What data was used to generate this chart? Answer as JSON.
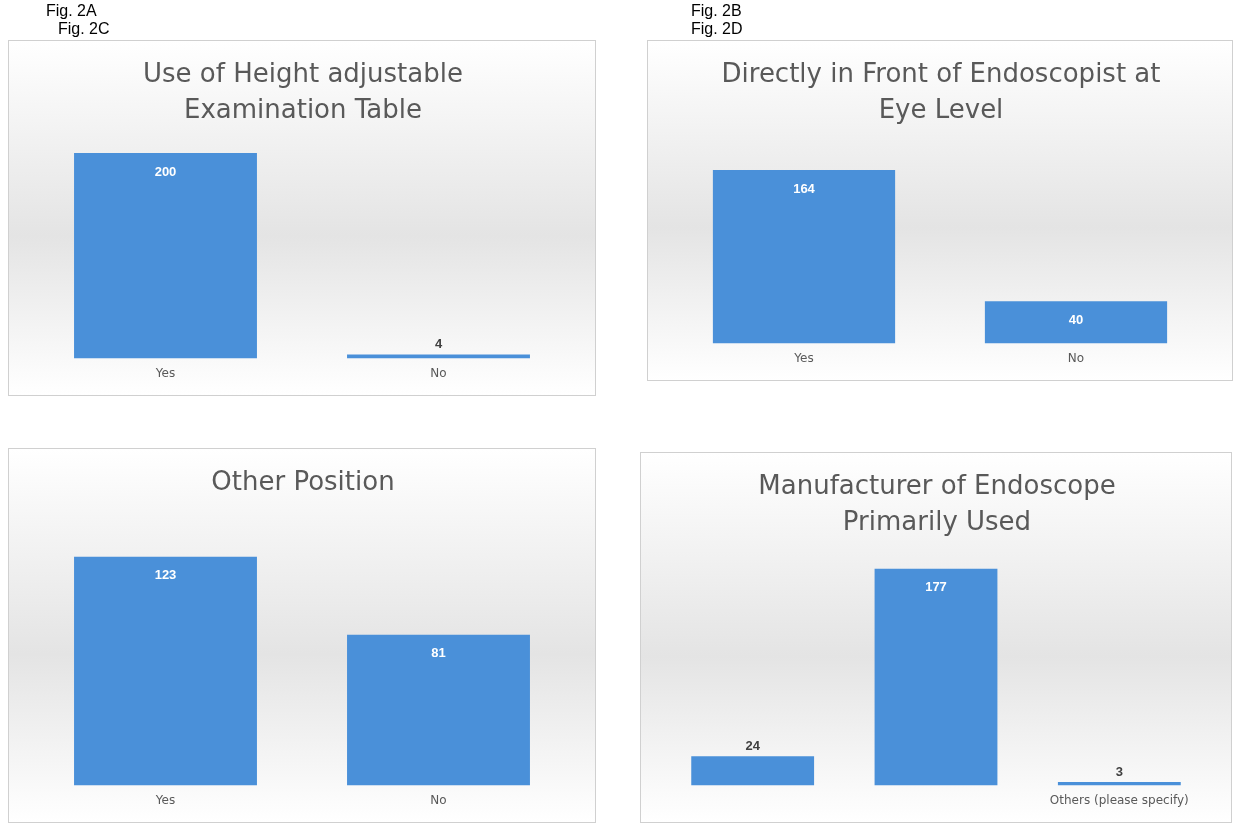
{
  "chart_data": [
    {
      "type": "bar",
      "title": "Use of Height adjustable Examination Table",
      "categories": [
        "Yes",
        "No"
      ],
      "values": [
        200,
        4
      ],
      "color": "#4a90d9",
      "data_labels": true,
      "grid": false,
      "legend": false,
      "annotations": [
        "Fig. 2A",
        "Fig. 2C"
      ]
    },
    {
      "type": "bar",
      "title": "Directly in Front of Endoscopist at Eye Level",
      "categories": [
        "Yes",
        "No"
      ],
      "values": [
        164,
        40
      ],
      "color": "#4a90d9",
      "data_labels": true,
      "grid": false,
      "legend": false,
      "annotations": [
        "Fig. 2B",
        "Fig. 2D"
      ]
    },
    {
      "type": "bar",
      "title": "Other Position",
      "categories": [
        "Yes",
        "No"
      ],
      "values": [
        123,
        81
      ],
      "color": "#4a90d9",
      "data_labels": true,
      "grid": false,
      "legend": false
    },
    {
      "type": "bar",
      "title": "Manufacturer of Endoscope Primarily Used",
      "categories": [
        null,
        null,
        "Others (please specify)"
      ],
      "values": [
        24,
        177,
        3
      ],
      "color": "#4a90d9",
      "data_labels": true,
      "grid": false,
      "legend": false
    }
  ]
}
